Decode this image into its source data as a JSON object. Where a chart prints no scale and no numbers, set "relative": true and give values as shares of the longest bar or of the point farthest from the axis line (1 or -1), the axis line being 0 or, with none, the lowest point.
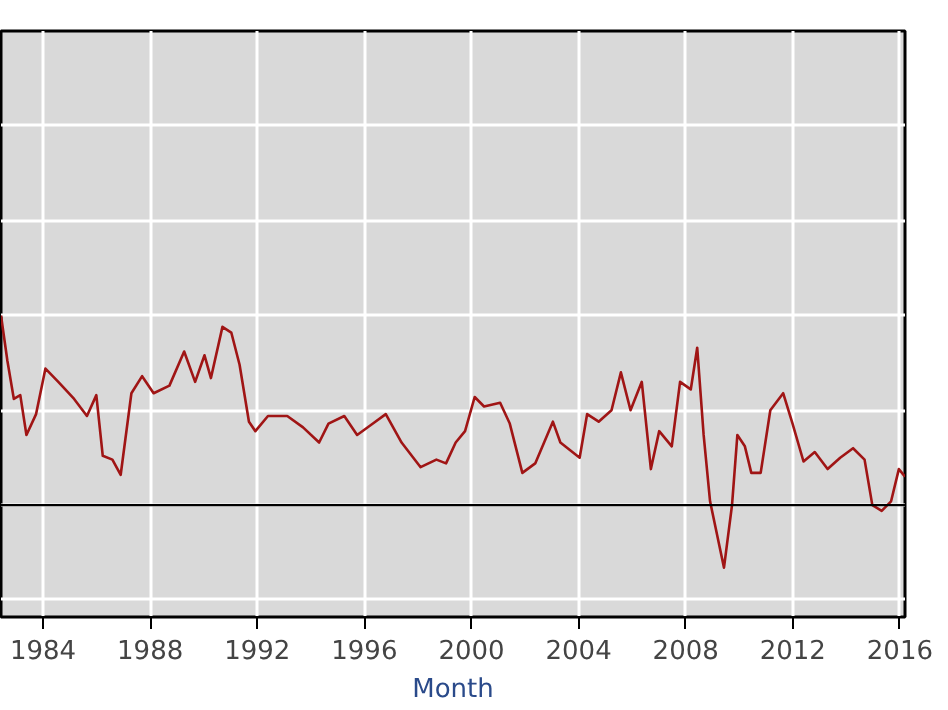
{
  "chart_data": {
    "type": "line",
    "xlabel": "Month",
    "relative": true,
    "grid": true,
    "xlim": [
      1982.43,
      2016.19
    ],
    "xticks": [
      1984,
      1988,
      1992,
      1996,
      2000,
      2004,
      2008,
      2012,
      2016
    ],
    "x": [
      1982.43,
      1982.67,
      1982.91,
      1983.15,
      1983.38,
      1983.74,
      1984.09,
      1984.57,
      1985.16,
      1985.64,
      1985.99,
      1986.23,
      1986.59,
      1986.9,
      1987.3,
      1987.7,
      1988.13,
      1988.72,
      1989.27,
      1989.68,
      1990.03,
      1990.27,
      1990.7,
      1991.03,
      1991.34,
      1991.69,
      1991.93,
      1992.4,
      1993.12,
      1993.71,
      1994.31,
      1994.66,
      1995.25,
      1995.73,
      1996.32,
      1996.8,
      1997.39,
      1998.1,
      1998.69,
      1999.05,
      1999.41,
      1999.76,
      2000.12,
      2000.47,
      2001.07,
      2001.43,
      2001.9,
      2002.38,
      2003.04,
      2003.32,
      2004.04,
      2004.32,
      2004.75,
      2005.23,
      2005.58,
      2005.94,
      2006.36,
      2006.7,
      2007.01,
      2007.48,
      2007.79,
      2008.19,
      2008.43,
      2008.67,
      2008.91,
      2009.43,
      2009.73,
      2009.93,
      2010.21,
      2010.45,
      2010.8,
      2011.16,
      2011.64,
      2011.99,
      2012.4,
      2012.82,
      2013.3,
      2013.77,
      2014.25,
      2014.68,
      2014.97,
      2015.32,
      2015.67,
      2015.96,
      2016.19
    ],
    "series": [
      {
        "color": "#a01515",
        "values": [
          1.0,
          0.76,
          0.56,
          0.58,
          0.37,
          0.48,
          0.72,
          0.65,
          0.56,
          0.47,
          0.58,
          0.26,
          0.24,
          0.16,
          0.59,
          0.68,
          0.59,
          0.63,
          0.81,
          0.65,
          0.79,
          0.67,
          0.94,
          0.91,
          0.74,
          0.44,
          0.39,
          0.47,
          0.47,
          0.41,
          0.33,
          0.43,
          0.47,
          0.37,
          0.43,
          0.48,
          0.33,
          0.2,
          0.24,
          0.22,
          0.33,
          0.39,
          0.57,
          0.52,
          0.54,
          0.43,
          0.17,
          0.22,
          0.44,
          0.33,
          0.25,
          0.48,
          0.44,
          0.5,
          0.7,
          0.5,
          0.65,
          0.19,
          0.39,
          0.31,
          0.65,
          0.61,
          0.83,
          0.37,
          0.02,
          -0.33,
          0.0,
          0.37,
          0.31,
          0.17,
          0.17,
          0.5,
          0.59,
          0.43,
          0.23,
          0.28,
          0.19,
          0.25,
          0.3,
          0.24,
          0.0,
          -0.03,
          0.02,
          0.19,
          0.15
        ]
      }
    ]
  }
}
